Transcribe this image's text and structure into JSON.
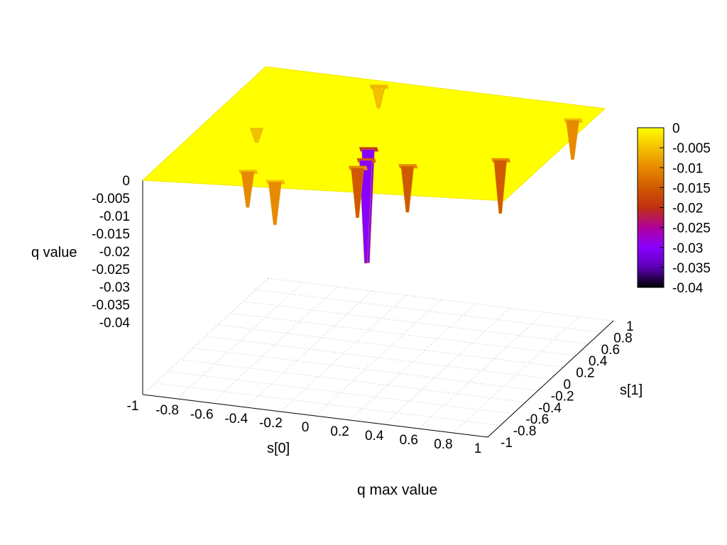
{
  "chart_data": {
    "type": "surface3d",
    "title": "q max value",
    "xlabel": "s[0]",
    "ylabel": "s[1]",
    "zlabel": "q value",
    "xlim": [
      -1,
      1
    ],
    "ylim": [
      -1,
      1
    ],
    "zlim": [
      -0.04,
      0
    ],
    "x_ticks": [
      "-1",
      "-0.8",
      "-0.6",
      "-0.4",
      "-0.2",
      "0",
      "0.2",
      "0.4",
      "0.6",
      "0.8",
      "1"
    ],
    "y_ticks": [
      "-1",
      "-0.8",
      "-0.6",
      "-0.4",
      "-0.2",
      "0",
      "0.2",
      "0.4",
      "0.6",
      "0.8",
      "1"
    ],
    "z_ticks": [
      "0",
      "-0.005",
      "-0.01",
      "-0.015",
      "-0.02",
      "-0.025",
      "-0.03",
      "-0.035",
      "-0.04"
    ],
    "colorbar": {
      "range": [
        -0.04,
        0
      ],
      "ticks": [
        "0",
        "-0.005",
        "-0.01",
        "-0.015",
        "-0.02",
        "-0.025",
        "-0.03",
        "-0.035",
        "-0.04"
      ],
      "palette": [
        "#000000",
        "#5a00b4",
        "#8a00ff",
        "#b0009a",
        "#c03010",
        "#d05a00",
        "#e88a00",
        "#f3c000",
        "#ffff00"
      ]
    },
    "surface_level": 0,
    "grid": true,
    "dips": [
      {
        "x": -0.3,
        "y": -0.9,
        "depth": -0.012
      },
      {
        "x": -0.5,
        "y": -0.75,
        "depth": -0.01
      },
      {
        "x": 0.0,
        "y": -0.2,
        "depth": -0.032
      },
      {
        "x": 0.05,
        "y": -0.4,
        "depth": -0.029
      },
      {
        "x": 0.05,
        "y": -0.55,
        "depth": -0.014
      },
      {
        "x": 0.3,
        "y": -0.45,
        "depth": -0.013
      },
      {
        "x": 0.75,
        "y": -0.2,
        "depth": -0.015
      },
      {
        "x": 0.9,
        "y": 0.7,
        "depth": -0.011
      },
      {
        "x": -0.3,
        "y": 0.9,
        "depth": -0.006
      },
      {
        "x": -0.7,
        "y": 0.0,
        "depth": -0.004
      }
    ]
  }
}
